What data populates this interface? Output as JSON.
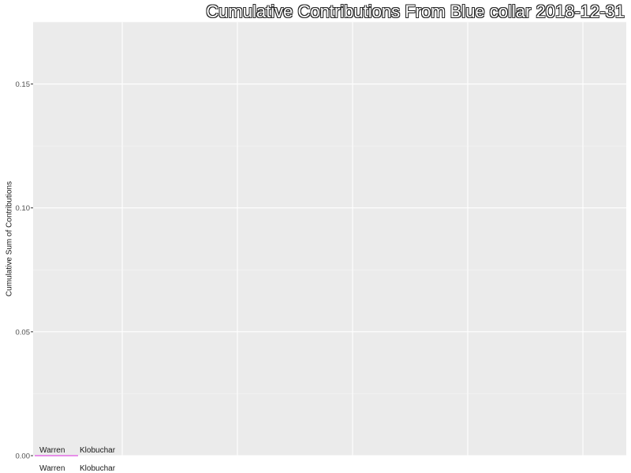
{
  "chart_data": {
    "type": "line",
    "title": "Cumulative Contributions From Blue collar 2018-12-31",
    "xlabel": "",
    "ylabel": "Cumulative Sum of Contributions",
    "ylim": [
      0,
      0.175
    ],
    "y_ticks": [
      0.0,
      0.05,
      0.1,
      0.15
    ],
    "y_tick_labels": [
      "0.00",
      "0.05",
      "0.10",
      "0.15"
    ],
    "x_ticks": [
      "Warren",
      "Klobuchar"
    ],
    "grid": true,
    "series": [
      {
        "name": "Warren",
        "color": "#e36ee6",
        "points": [
          [
            0,
            0
          ],
          [
            1,
            0
          ]
        ]
      }
    ],
    "annotations": [
      {
        "text": "Warren",
        "y": 0
      },
      {
        "text": "Klobuchar",
        "y": 0
      }
    ]
  }
}
